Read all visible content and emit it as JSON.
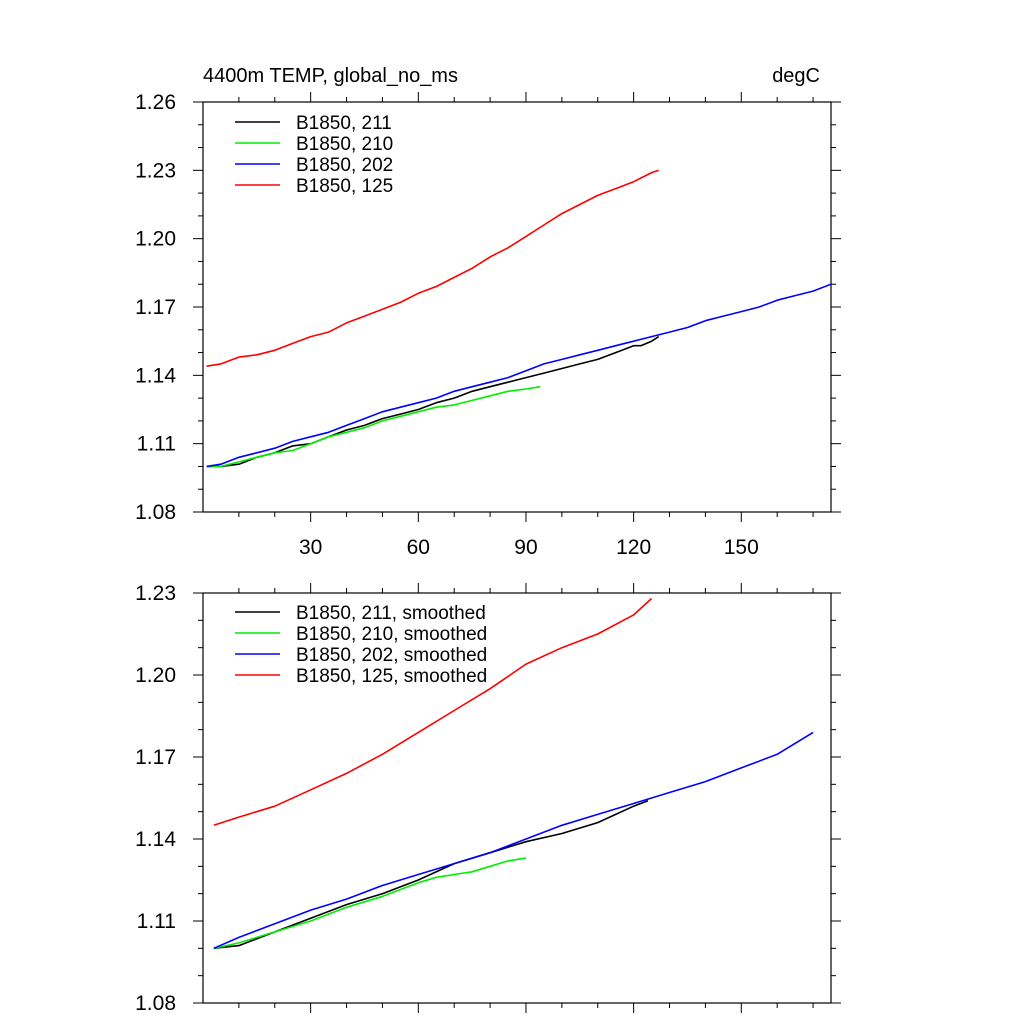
{
  "chart_data": [
    {
      "type": "line",
      "title_left": "4400m TEMP, global_no_ms",
      "title_right": "degC",
      "xlabel": "",
      "ylabel": "",
      "xlim": [
        0,
        175
      ],
      "ylim": [
        1.08,
        1.26
      ],
      "xticks": [
        30,
        60,
        90,
        120,
        150
      ],
      "yticks": [
        1.08,
        1.11,
        1.14,
        1.17,
        1.2,
        1.23,
        1.26
      ],
      "ytick_labels": [
        "1.08",
        "1.11",
        "1.14",
        "1.17",
        "1.20",
        "1.23",
        "1.26"
      ],
      "legend_position": "top-left",
      "series": [
        {
          "name": "B1850, 211",
          "color": "#000000",
          "x": [
            1,
            5,
            10,
            15,
            20,
            25,
            30,
            35,
            40,
            45,
            50,
            55,
            60,
            65,
            70,
            75,
            80,
            85,
            90,
            95,
            100,
            105,
            110,
            115,
            120,
            122,
            125,
            127
          ],
          "y": [
            1.1,
            1.1,
            1.101,
            1.104,
            1.106,
            1.109,
            1.11,
            1.113,
            1.116,
            1.118,
            1.121,
            1.123,
            1.125,
            1.128,
            1.13,
            1.133,
            1.135,
            1.137,
            1.139,
            1.141,
            1.143,
            1.145,
            1.147,
            1.15,
            1.153,
            1.153,
            1.155,
            1.157
          ]
        },
        {
          "name": "B1850, 210",
          "color": "#00ee00",
          "x": [
            1,
            5,
            10,
            15,
            20,
            25,
            30,
            35,
            40,
            45,
            50,
            55,
            60,
            65,
            70,
            75,
            80,
            85,
            90,
            94
          ],
          "y": [
            1.1,
            1.1,
            1.102,
            1.104,
            1.106,
            1.107,
            1.11,
            1.113,
            1.115,
            1.117,
            1.12,
            1.122,
            1.124,
            1.126,
            1.127,
            1.129,
            1.131,
            1.133,
            1.134,
            1.135
          ]
        },
        {
          "name": "B1850, 202",
          "color": "#0000ff",
          "x": [
            1,
            5,
            10,
            15,
            20,
            25,
            30,
            35,
            40,
            45,
            50,
            55,
            60,
            65,
            70,
            75,
            80,
            85,
            90,
            95,
            100,
            105,
            110,
            115,
            120,
            125,
            130,
            135,
            140,
            145,
            150,
            155,
            160,
            165,
            170,
            175
          ],
          "y": [
            1.1,
            1.101,
            1.104,
            1.106,
            1.108,
            1.111,
            1.113,
            1.115,
            1.118,
            1.121,
            1.124,
            1.126,
            1.128,
            1.13,
            1.133,
            1.135,
            1.137,
            1.139,
            1.142,
            1.145,
            1.147,
            1.149,
            1.151,
            1.153,
            1.155,
            1.157,
            1.159,
            1.161,
            1.164,
            1.166,
            1.168,
            1.17,
            1.173,
            1.175,
            1.177,
            1.18
          ]
        },
        {
          "name": "B1850, 125",
          "color": "#ff0000",
          "x": [
            1,
            5,
            10,
            15,
            20,
            25,
            30,
            35,
            40,
            45,
            50,
            55,
            60,
            65,
            70,
            75,
            80,
            85,
            90,
            95,
            100,
            105,
            110,
            115,
            120,
            125,
            127
          ],
          "y": [
            1.144,
            1.145,
            1.148,
            1.149,
            1.151,
            1.154,
            1.157,
            1.159,
            1.163,
            1.166,
            1.169,
            1.172,
            1.176,
            1.179,
            1.183,
            1.187,
            1.192,
            1.196,
            1.201,
            1.206,
            1.211,
            1.215,
            1.219,
            1.222,
            1.225,
            1.229,
            1.23
          ]
        }
      ]
    },
    {
      "type": "line",
      "xlabel": "",
      "ylabel": "",
      "xlim": [
        0,
        175
      ],
      "ylim": [
        1.08,
        1.23
      ],
      "xticks": [
        30,
        60,
        90,
        120,
        150
      ],
      "yticks": [
        1.08,
        1.11,
        1.14,
        1.17,
        1.2,
        1.23
      ],
      "ytick_labels": [
        "1.08",
        "1.11",
        "1.14",
        "1.17",
        "1.20",
        "1.23"
      ],
      "legend_position": "top-left",
      "series": [
        {
          "name": "B1850, 211, smoothed",
          "color": "#000000",
          "x": [
            3,
            10,
            20,
            30,
            40,
            50,
            60,
            70,
            80,
            90,
            100,
            110,
            115,
            120,
            124
          ],
          "y": [
            1.1,
            1.101,
            1.106,
            1.111,
            1.116,
            1.12,
            1.125,
            1.131,
            1.135,
            1.139,
            1.142,
            1.146,
            1.149,
            1.152,
            1.154
          ]
        },
        {
          "name": "B1850, 210, smoothed",
          "color": "#00ee00",
          "x": [
            3,
            10,
            20,
            30,
            40,
            50,
            60,
            65,
            70,
            75,
            80,
            85,
            90
          ],
          "y": [
            1.1,
            1.102,
            1.106,
            1.11,
            1.115,
            1.119,
            1.124,
            1.126,
            1.127,
            1.128,
            1.13,
            1.132,
            1.133
          ]
        },
        {
          "name": "B1850, 202, smoothed",
          "color": "#0000ff",
          "x": [
            3,
            10,
            20,
            30,
            40,
            50,
            60,
            70,
            80,
            90,
            100,
            110,
            120,
            130,
            140,
            150,
            160,
            170
          ],
          "y": [
            1.1,
            1.104,
            1.109,
            1.114,
            1.118,
            1.123,
            1.127,
            1.131,
            1.135,
            1.14,
            1.145,
            1.149,
            1.153,
            1.157,
            1.161,
            1.166,
            1.171,
            1.179
          ]
        },
        {
          "name": "B1850, 125, smoothed",
          "color": "#ff0000",
          "x": [
            3,
            10,
            20,
            30,
            40,
            50,
            60,
            70,
            80,
            90,
            100,
            110,
            120,
            125
          ],
          "y": [
            1.145,
            1.148,
            1.152,
            1.158,
            1.164,
            1.171,
            1.179,
            1.187,
            1.195,
            1.204,
            1.21,
            1.215,
            1.222,
            1.228
          ]
        }
      ]
    }
  ]
}
